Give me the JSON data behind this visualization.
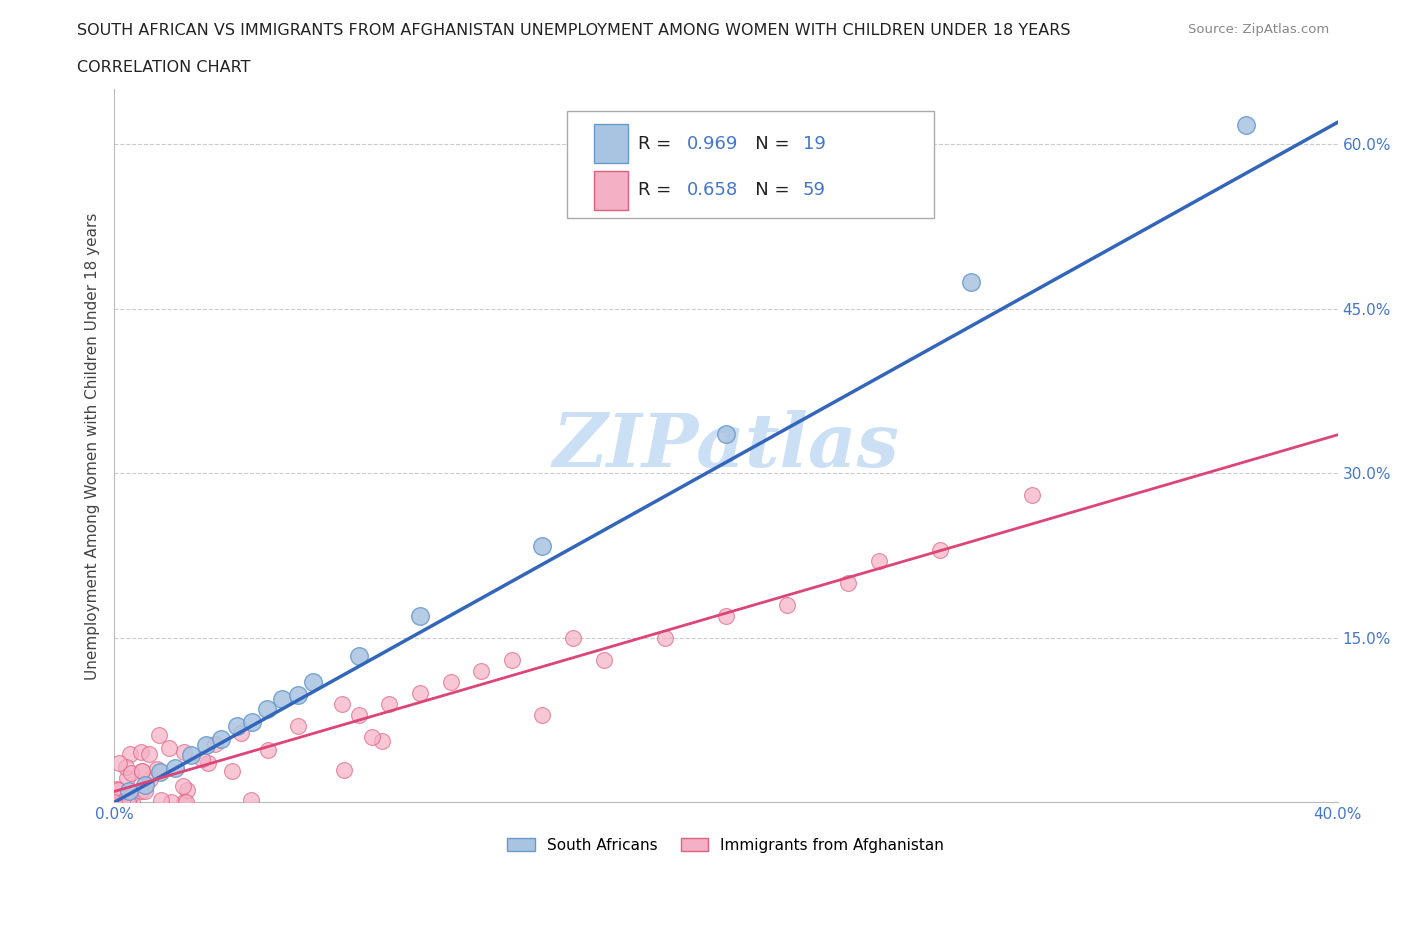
{
  "title_line1": "SOUTH AFRICAN VS IMMIGRANTS FROM AFGHANISTAN UNEMPLOYMENT AMONG WOMEN WITH CHILDREN UNDER 18 YEARS",
  "title_line2": "CORRELATION CHART",
  "source_text": "Source: ZipAtlas.com",
  "ylabel": "Unemployment Among Women with Children Under 18 years",
  "xlim": [
    0.0,
    0.4
  ],
  "ylim": [
    0.0,
    0.65
  ],
  "xtick_positions": [
    0.0,
    0.05,
    0.1,
    0.15,
    0.2,
    0.25,
    0.3,
    0.35,
    0.4
  ],
  "ytick_positions": [
    0.0,
    0.15,
    0.3,
    0.45,
    0.6
  ],
  "grid_color": "#cccccc",
  "background_color": "#ffffff",
  "sa_color": "#a8c4e0",
  "sa_edge_color": "#6699cc",
  "sa_line_color": "#3366bb",
  "sa_R": 0.969,
  "sa_N": 19,
  "afg_color": "#f4b0c4",
  "afg_edge_color": "#e06080",
  "afg_line_color": "#dd4477",
  "afg_R": 0.658,
  "afg_N": 59,
  "watermark": "ZIPatlas",
  "watermark_color": "#cce0f5",
  "title_color": "#222222",
  "ylabel_color": "#444444",
  "tick_label_color": "#4477cc",
  "source_color": "#888888",
  "legend_R_val_color": "#4477cc",
  "legend_N_val_color": "#4477cc",
  "legend_text_color": "#222222"
}
